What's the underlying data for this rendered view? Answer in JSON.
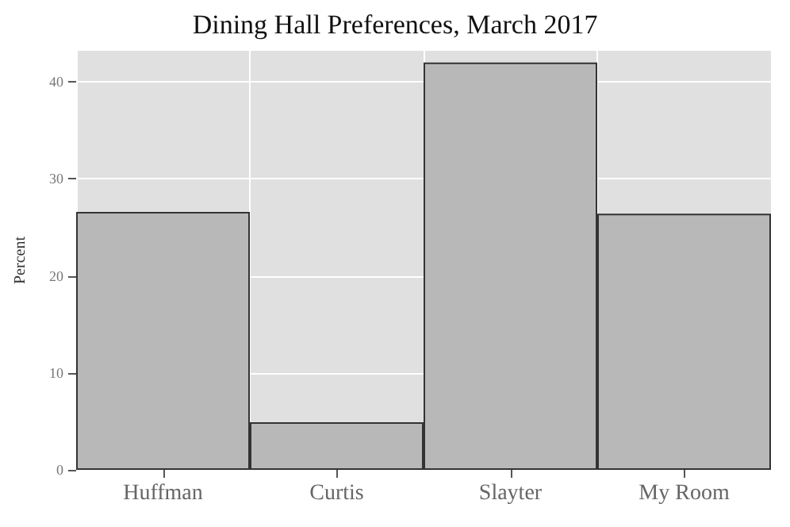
{
  "chart_data": {
    "type": "bar",
    "title": "Dining Hall Preferences, March 2017",
    "ylabel": "Percent",
    "categories": [
      "Huffman",
      "Curtis",
      "Slayter",
      "My Room"
    ],
    "values": [
      26.6,
      4.9,
      42.0,
      26.4
    ],
    "color": "#b8b8b8",
    "ylim": [
      0,
      43.2
    ],
    "yticks": [
      0,
      10,
      20,
      30,
      40
    ],
    "grid": true
  }
}
